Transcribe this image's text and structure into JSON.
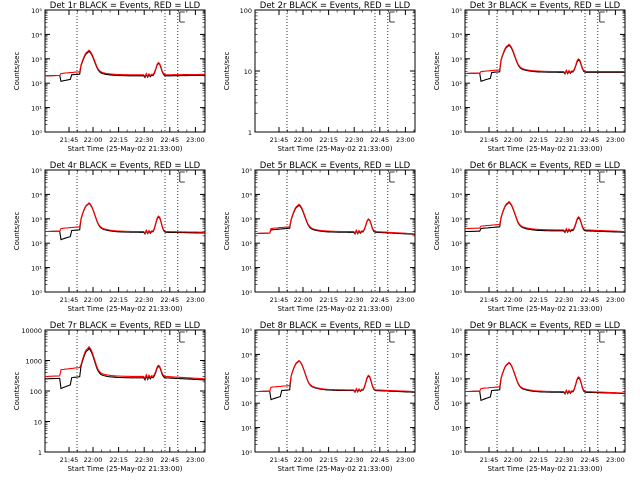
{
  "colors": {
    "events": "#000000",
    "lld": "#ff0000",
    "background": "#ffffff"
  },
  "chart_data": [
    {
      "id": "det1r",
      "type": "line",
      "title": "Det 1r BLACK = Events, RED = LLD",
      "ylabel": "Counts/sec",
      "xlabel": "Start Time (25-May-02 21:33:00)",
      "yscale": "log",
      "ylim": [
        1,
        100000
      ],
      "ytick_labels": [
        "10⁰",
        "10¹",
        "10²",
        "10³",
        "10⁴",
        "10⁵"
      ],
      "x_minutes_since_start_time": [
        0,
        48
      ],
      "xtick_labels": [
        "21:45",
        "22:00",
        "22:15",
        "22:30",
        "22:45",
        "23:00"
      ],
      "vlines": [
        "21:48",
        "22:46",
        "22:55"
      ],
      "series": [
        {
          "color": "red",
          "shape": "flare",
          "values": {
            "pre": 200,
            "start_rise": 250,
            "peak1": 2000,
            "valley": 220,
            "peak2": 700,
            "end": 230
          }
        },
        {
          "color": "black",
          "shape": "flare_with_dip",
          "values": {
            "pre": 200,
            "dip": 120,
            "peak1": 1800,
            "valley": 200,
            "peak2": 650,
            "end": 210
          }
        }
      ],
      "show_series": true
    },
    {
      "id": "det2r",
      "type": "line",
      "title": "Det 2r BLACK = Events, RED = LLD",
      "ylabel": "Counts/sec",
      "xlabel": "Start Time (25-May-02 21:33:00)",
      "yscale": "log",
      "ylim": [
        1,
        100
      ],
      "ytick_labels": [
        "1",
        "10",
        "100"
      ],
      "xtick_labels": [
        "21:45",
        "22:00",
        "22:15",
        "22:30",
        "22:45",
        "23:00"
      ],
      "vlines": [
        "21:48",
        "22:46",
        "22:55"
      ],
      "series": [],
      "show_series": false
    },
    {
      "id": "det3r",
      "type": "line",
      "title": "Det 3r BLACK = Events, RED = LLD",
      "ylabel": "Counts/sec",
      "xlabel": "Start Time (25-May-02 21:33:00)",
      "yscale": "log",
      "ylim": [
        1,
        100000
      ],
      "ytick_labels": [
        "10⁰",
        "10¹",
        "10²",
        "10³",
        "10⁴",
        "10⁵"
      ],
      "xtick_labels": [
        "21:45",
        "22:00",
        "22:15",
        "22:30",
        "22:45",
        "23:00"
      ],
      "vlines": [
        "21:48",
        "22:46",
        "22:55"
      ],
      "series": [
        {
          "color": "red",
          "shape": "flare",
          "values": {
            "pre": 250,
            "start_rise": 300,
            "peak1": 3500,
            "valley": 300,
            "peak2": 1000,
            "end": 300
          }
        },
        {
          "color": "black",
          "shape": "flare_with_dip",
          "values": {
            "pre": 250,
            "dip": 120,
            "peak1": 3200,
            "valley": 280,
            "peak2": 900,
            "end": 280
          }
        }
      ],
      "show_series": true
    },
    {
      "id": "det4r",
      "type": "line",
      "title": "Det 4r BLACK = Events, RED = LLD",
      "ylabel": "Counts/sec",
      "xlabel": "Start Time (25-May-02 21:33:00)",
      "yscale": "log",
      "ylim": [
        1,
        100000
      ],
      "ytick_labels": [
        "10⁰",
        "10¹",
        "10²",
        "10³",
        "10⁴",
        "10⁵"
      ],
      "xtick_labels": [
        "21:45",
        "22:00",
        "22:15",
        "22:30",
        "22:45",
        "23:00"
      ],
      "vlines": [
        "21:48",
        "22:46",
        "22:55"
      ],
      "series": [
        {
          "color": "red",
          "shape": "flare",
          "values": {
            "pre": 300,
            "start_rise": 400,
            "peak1": 4000,
            "valley": 300,
            "peak2": 1300,
            "end": 280
          }
        },
        {
          "color": "black",
          "shape": "flare_with_dip",
          "values": {
            "pre": 300,
            "dip": 140,
            "peak1": 3800,
            "valley": 280,
            "peak2": 1200,
            "end": 260
          }
        }
      ],
      "show_series": true
    },
    {
      "id": "det5r",
      "type": "line",
      "title": "Det 5r BLACK = Events, RED = LLD",
      "ylabel": "Counts/sec",
      "xlabel": "Start Time (25-May-02 21:33:00)",
      "yscale": "log",
      "ylim": [
        1,
        100000
      ],
      "ytick_labels": [
        "10⁰",
        "10¹",
        "10²",
        "10³",
        "10⁴",
        "10⁵"
      ],
      "xtick_labels": [
        "21:45",
        "22:00",
        "22:15",
        "22:30",
        "22:45",
        "23:00"
      ],
      "vlines": [
        "21:48",
        "22:46",
        "22:55"
      ],
      "series": [
        {
          "color": "red",
          "shape": "flare",
          "values": {
            "pre": 250,
            "start_rise": 400,
            "peak1": 3500,
            "valley": 300,
            "peak2": 1000,
            "end": 240
          }
        },
        {
          "color": "black",
          "shape": "flare",
          "values": {
            "pre": 250,
            "start_rise": 350,
            "peak1": 3200,
            "valley": 280,
            "peak2": 950,
            "end": 230
          }
        }
      ],
      "show_series": true
    },
    {
      "id": "det6r",
      "type": "line",
      "title": "Det 6r BLACK = Events, RED = LLD",
      "ylabel": "Counts/sec",
      "xlabel": "Start Time (25-May-02 21:33:00)",
      "yscale": "log",
      "ylim": [
        1,
        100000
      ],
      "ytick_labels": [
        "10⁰",
        "10¹",
        "10²",
        "10³",
        "10⁴",
        "10⁵"
      ],
      "xtick_labels": [
        "21:45",
        "22:00",
        "22:15",
        "22:30",
        "22:45",
        "23:00"
      ],
      "vlines": [
        "21:48",
        "22:46",
        "22:55"
      ],
      "series": [
        {
          "color": "red",
          "shape": "flare",
          "values": {
            "pre": 400,
            "start_rise": 500,
            "peak1": 4500,
            "valley": 350,
            "peak2": 1200,
            "end": 300
          }
        },
        {
          "color": "black",
          "shape": "flare",
          "values": {
            "pre": 300,
            "start_rise": 400,
            "peak1": 4200,
            "valley": 320,
            "peak2": 1100,
            "end": 280
          }
        }
      ],
      "show_series": true
    },
    {
      "id": "det7r",
      "type": "line",
      "title": "Det 7r BLACK = Events, RED = LLD",
      "ylabel": "Counts/sec",
      "xlabel": "Start Time (25-May-02 21:33:00)",
      "yscale": "log",
      "ylim": [
        1,
        10000
      ],
      "ytick_labels": [
        "1",
        "10",
        "100",
        "1000",
        "10000"
      ],
      "xtick_labels": [
        "21:45",
        "22:00",
        "22:15",
        "22:30",
        "22:45",
        "23:00"
      ],
      "vlines": [
        "21:48",
        "22:46",
        "22:55"
      ],
      "series": [
        {
          "color": "red",
          "shape": "flare",
          "values": {
            "pre": 300,
            "start_rise": 500,
            "peak1": 2500,
            "valley": 300,
            "peak2": 700,
            "end": 250
          }
        },
        {
          "color": "black",
          "shape": "flare_with_dip",
          "values": {
            "pre": 250,
            "dip": 120,
            "peak1": 2200,
            "valley": 270,
            "peak2": 650,
            "end": 230
          }
        }
      ],
      "show_series": true
    },
    {
      "id": "det8r",
      "type": "line",
      "title": "Det 8r BLACK = Events, RED = LLD",
      "ylabel": "Counts/sec",
      "xlabel": "Start Time (25-May-02 21:33:00)",
      "yscale": "log",
      "ylim": [
        1,
        100000
      ],
      "ytick_labels": [
        "10⁰",
        "10¹",
        "10²",
        "10³",
        "10⁴",
        "10⁵"
      ],
      "xtick_labels": [
        "21:45",
        "22:00",
        "22:15",
        "22:30",
        "22:45",
        "23:00"
      ],
      "vlines": [
        "21:48",
        "22:46",
        "22:55"
      ],
      "series": [
        {
          "color": "red",
          "shape": "flare",
          "values": {
            "pre": 300,
            "start_rise": 450,
            "peak1": 5000,
            "valley": 350,
            "peak2": 1400,
            "end": 300
          }
        },
        {
          "color": "black",
          "shape": "flare_with_dip",
          "values": {
            "pre": 300,
            "dip": 140,
            "peak1": 4800,
            "valley": 330,
            "peak2": 1300,
            "end": 280
          }
        }
      ],
      "show_series": true
    },
    {
      "id": "det9r",
      "type": "line",
      "title": "Det 9r BLACK = Events, RED = LLD",
      "ylabel": "Counts/sec",
      "xlabel": "Start Time (25-May-02 21:33:00)",
      "yscale": "log",
      "ylim": [
        1,
        100000
      ],
      "ytick_labels": [
        "10⁰",
        "10¹",
        "10²",
        "10³",
        "10⁴",
        "10⁵"
      ],
      "xtick_labels": [
        "21:45",
        "22:00",
        "22:15",
        "22:30",
        "22:45",
        "23:00"
      ],
      "vlines": [
        "21:48",
        "22:46",
        "22:55"
      ],
      "series": [
        {
          "color": "red",
          "shape": "flare",
          "values": {
            "pre": 300,
            "start_rise": 400,
            "peak1": 4200,
            "valley": 300,
            "peak2": 1200,
            "end": 260
          }
        },
        {
          "color": "black",
          "shape": "flare_with_dip",
          "values": {
            "pre": 300,
            "dip": 130,
            "peak1": 4000,
            "valley": 280,
            "peak2": 1100,
            "end": 250
          }
        }
      ],
      "show_series": true
    }
  ]
}
